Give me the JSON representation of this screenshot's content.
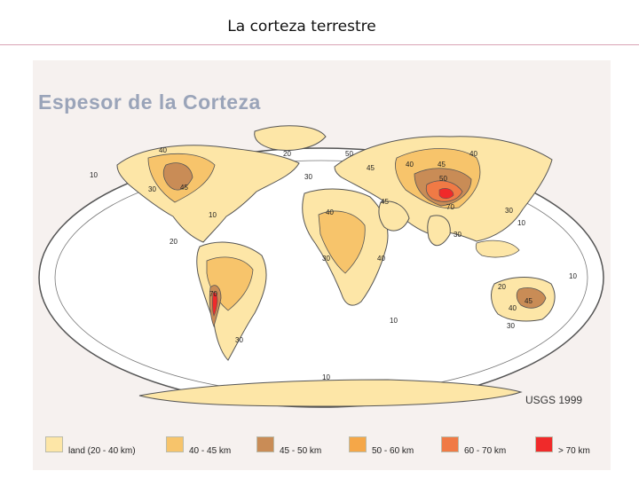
{
  "slide": {
    "title": "La corteza terrestre"
  },
  "map": {
    "heading": "Espesor de la Corteza",
    "source": "USGS 1999",
    "contour_labels": [
      "40",
      "20",
      "10",
      "30",
      "45",
      "10",
      "20",
      "70",
      "30",
      "30",
      "40",
      "40",
      "30",
      "50",
      "45",
      "40",
      "45",
      "40",
      "50",
      "45",
      "70",
      "30",
      "10",
      "30",
      "20",
      "45",
      "40",
      "30",
      "10",
      "10",
      "10"
    ]
  },
  "legend": [
    {
      "label": "land (20 - 40 km)",
      "color": "#fde6a7"
    },
    {
      "label": "40 - 45 km",
      "color": "#f7c46b"
    },
    {
      "label": "45 - 50 km",
      "color": "#c98c56"
    },
    {
      "label": "50 - 60 km",
      "color": "#f5a748"
    },
    {
      "label": "60 - 70 km",
      "color": "#f07a45"
    },
    {
      "label": "> 70 km",
      "color": "#f02a2a"
    }
  ]
}
